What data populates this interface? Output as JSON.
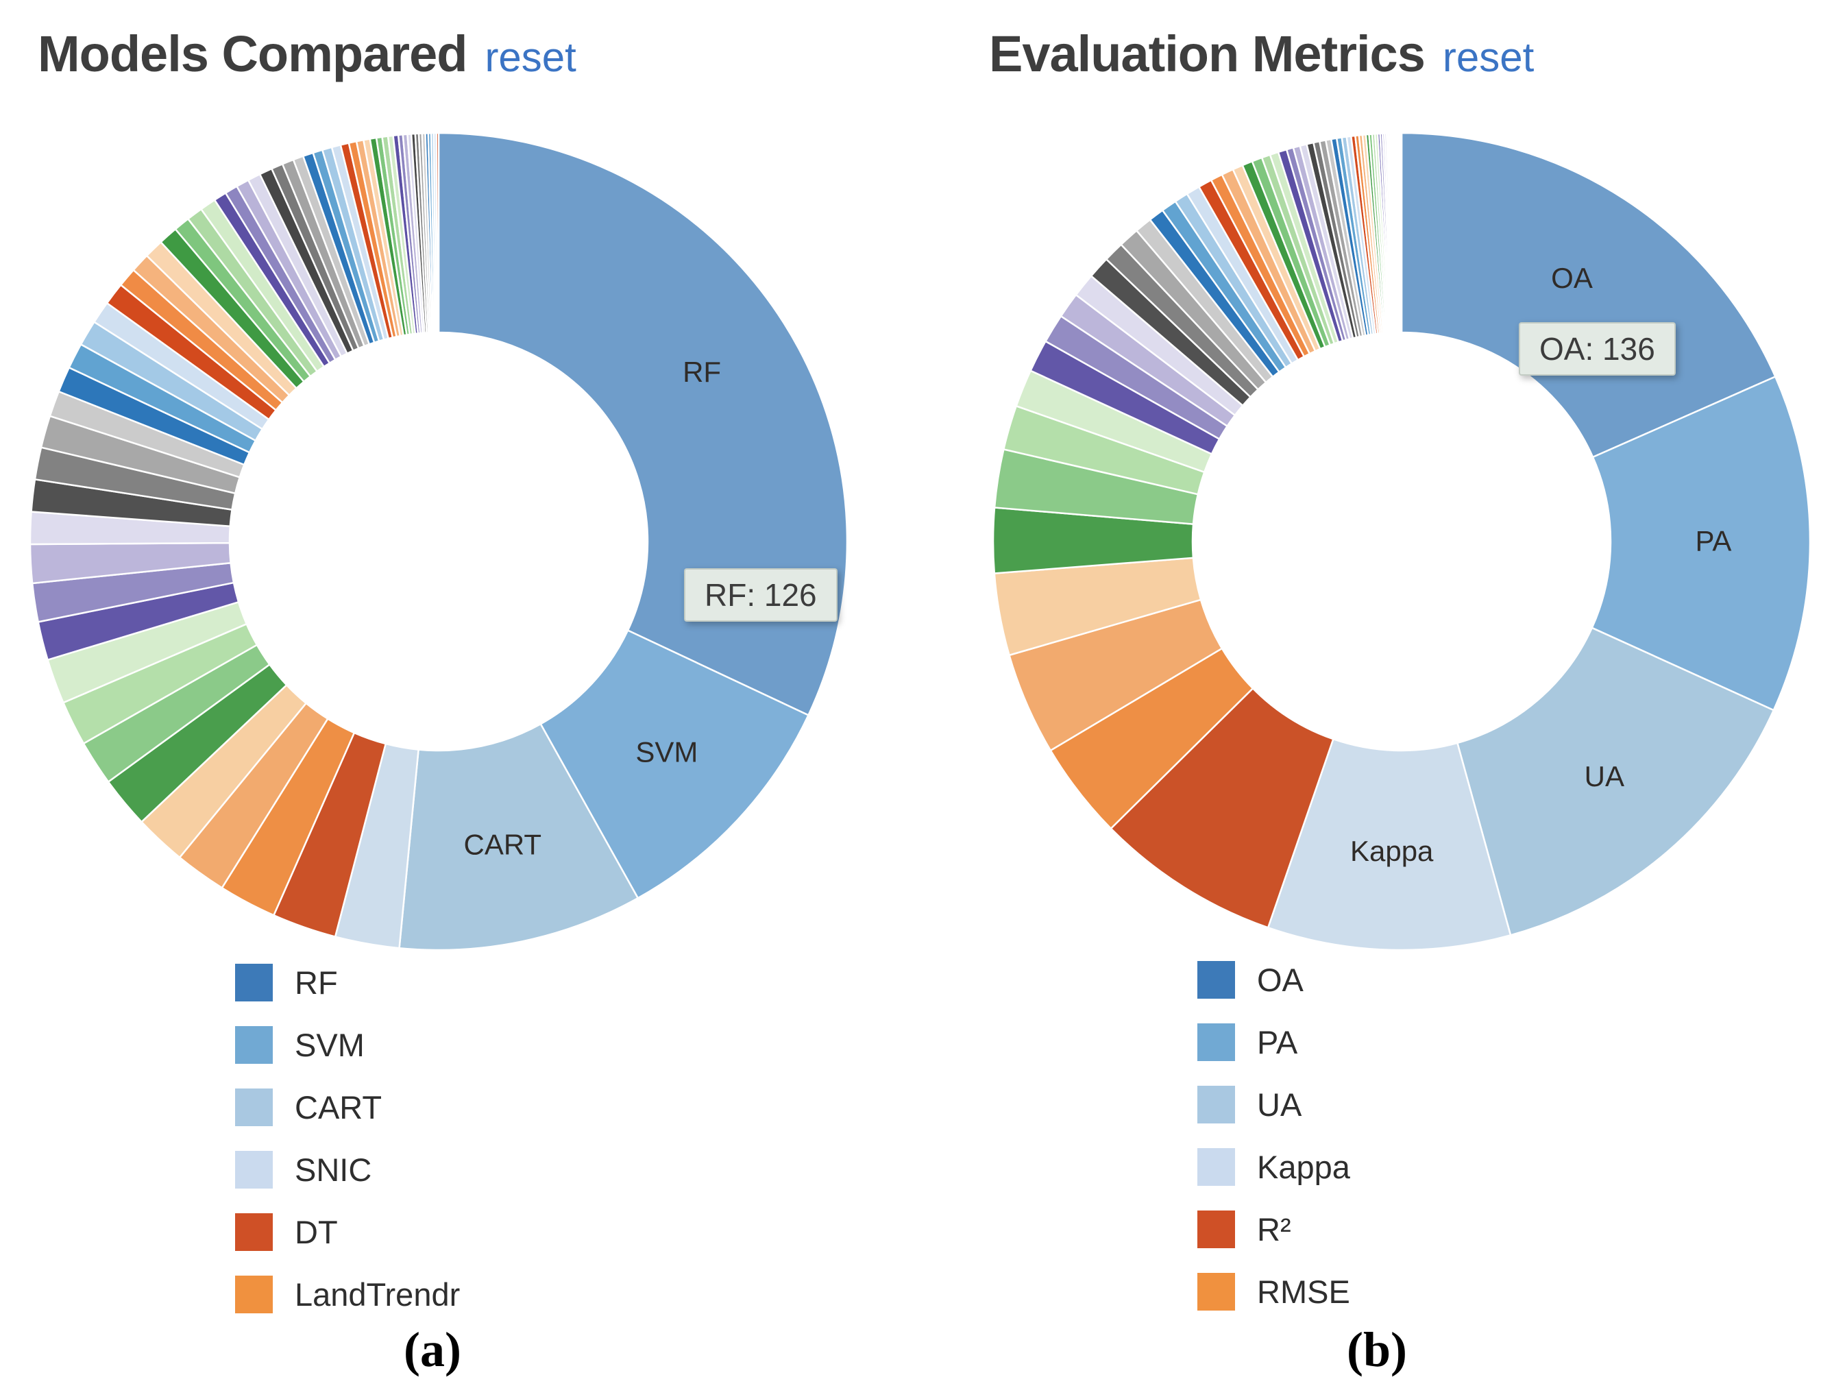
{
  "palette": {
    "major": [
      "#6f9dca",
      "#7fb0d8",
      "#a9c8de",
      "#cdddec",
      "#cb5228",
      "#ee8f45",
      "#f2aa6e",
      "#f7cfa2",
      "#4a9e4d",
      "#8bca89",
      "#b4dfaa",
      "#d6edcd",
      "#6257a8",
      "#938cc3",
      "#bcb6da",
      "#dedcee",
      "#515151",
      "#828282",
      "#a8a8a8",
      "#cbcbcb"
    ],
    "repeat": [
      "#2d77ba",
      "#61a3d1",
      "#a3c9e6",
      "#d0e0f1",
      "#d34a1d",
      "#f08b45",
      "#f5b37d",
      "#f9d5af",
      "#3f9a43",
      "#7fc67e",
      "#aedaa4",
      "#d2ebc8",
      "#5c50a4",
      "#8d85c0",
      "#b9b3d8",
      "#dbd9ec",
      "#474747",
      "#7a7a7a",
      "#a3a3a3",
      "#c8c8c8"
    ],
    "legend": [
      "#3d7ab8",
      "#71a9d3",
      "#a9c8e1",
      "#cadaee",
      "#cf5026",
      "#f0913f"
    ],
    "slice_label_color": "#2f2b28",
    "title_color": "#3e3e3e",
    "reset_color": "#3b74c4"
  },
  "captions": {
    "a": "(a)",
    "b": "(b)"
  },
  "charts": [
    {
      "id": "models",
      "title": "Models Compared",
      "reset_label": "reset",
      "tooltip_text": "RF: 126",
      "legend": [
        {
          "label": "RF"
        },
        {
          "label": "SVM"
        },
        {
          "label": "CART"
        },
        {
          "label": "SNIC"
        },
        {
          "label": "DT"
        },
        {
          "label": "LandTrendr"
        }
      ],
      "chart_data": {
        "type": "donut",
        "title": "Models Compared",
        "legend_position": "bottom-left",
        "start_angle_deg": 0,
        "direction": "clockwise",
        "highlighted_slice": {
          "label": "RF",
          "value": 126
        },
        "slices": [
          {
            "label": "RF",
            "value": 126,
            "show_label": true
          },
          {
            "label": "SVM",
            "value": 39,
            "show_label": true
          },
          {
            "label": "CART",
            "value": 38,
            "show_label": true
          },
          {
            "label": "SNIC",
            "value": 10,
            "show_label": false
          },
          {
            "label": "DT",
            "value": 10,
            "show_label": false
          },
          {
            "label": "LandTrendr",
            "value": 9,
            "show_label": false
          }
        ],
        "tail_values": [
          8,
          8,
          8,
          7,
          7,
          7,
          6,
          6,
          6,
          5,
          5,
          5,
          5,
          4,
          4,
          4,
          4,
          3.5,
          3.5,
          3,
          3,
          3,
          3,
          2.5,
          2.5,
          2.5,
          2,
          2,
          2,
          2,
          2,
          1.8,
          1.8,
          1.6,
          1.6,
          1.5,
          1.5,
          1.4,
          1.3,
          1.2,
          1.1,
          1,
          1,
          0.9,
          0.9,
          0.8,
          0.8,
          0.7,
          0.7,
          0.6,
          0.6,
          0.55,
          0.5,
          0.5,
          0.45,
          0.45,
          0.4,
          0.4,
          0.35
        ]
      }
    },
    {
      "id": "metrics",
      "title": "Evaluation Metrics",
      "reset_label": "reset",
      "tooltip_text": "OA: 136",
      "legend": [
        {
          "label": "OA"
        },
        {
          "label": "PA"
        },
        {
          "label": "UA"
        },
        {
          "label": "Kappa"
        },
        {
          "label": "R²"
        },
        {
          "label": "RMSE"
        }
      ],
      "chart_data": {
        "type": "donut",
        "title": "Evaluation Metrics",
        "legend_position": "bottom-left",
        "start_angle_deg": 0,
        "direction": "clockwise",
        "highlighted_slice": {
          "label": "OA",
          "value": 136
        },
        "slices": [
          {
            "label": "OA",
            "value": 136,
            "show_label": true
          },
          {
            "label": "PA",
            "value": 99,
            "show_label": true
          },
          {
            "label": "UA",
            "value": 103,
            "show_label": true
          },
          {
            "label": "Kappa",
            "value": 71,
            "show_label": true
          },
          {
            "label": "R²",
            "value": 54,
            "show_label": false
          },
          {
            "label": "RMSE",
            "value": 28.5,
            "show_label": false
          }
        ],
        "tail_values": [
          30,
          24,
          19,
          17,
          13,
          11,
          9.5,
          8.5,
          7.5,
          7,
          6.5,
          6,
          6,
          5,
          4.5,
          4.5,
          4,
          4,
          4,
          3.5,
          3.5,
          3,
          3,
          3,
          2.5,
          2.5,
          2.5,
          2,
          2,
          2,
          2,
          1.8,
          1.8,
          1.6,
          1.6,
          1.5,
          1.4,
          1.3,
          1.2,
          1.1,
          1,
          1,
          0.9,
          0.9,
          0.8,
          0.8,
          0.7,
          0.7,
          0.6,
          0.6,
          0.5,
          0.5,
          0.45,
          0.4,
          0.35,
          0.3,
          0.3,
          0.25,
          0.25,
          0.2,
          0.2,
          0.15,
          0.15,
          0.1,
          0.1,
          0.1
        ]
      }
    }
  ]
}
